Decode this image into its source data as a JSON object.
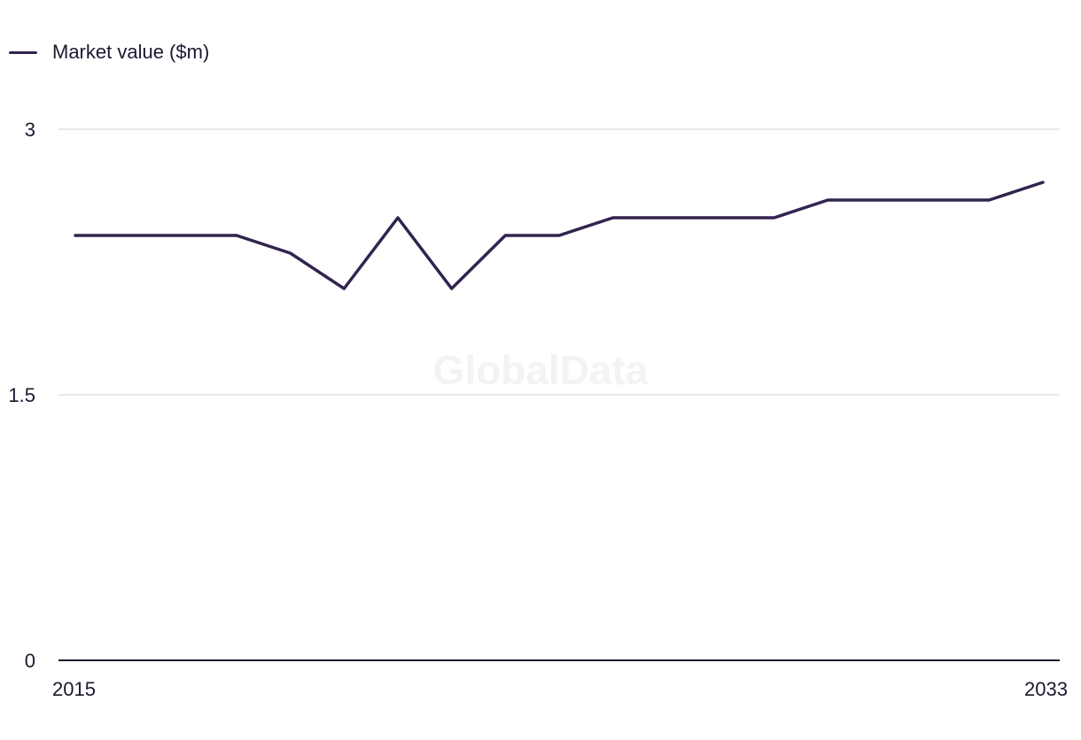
{
  "legend": {
    "label": "Market value ($m)"
  },
  "watermark": "GlobalData",
  "colors": {
    "series": "#32234f",
    "grid": "#d9d9d9",
    "axis": "#1e1830"
  },
  "chart_data": {
    "type": "line",
    "title": "",
    "xlabel": "",
    "ylabel": "",
    "x": [
      2015,
      2016,
      2017,
      2018,
      2019,
      2020,
      2021,
      2022,
      2023,
      2024,
      2025,
      2026,
      2027,
      2028,
      2029,
      2030,
      2031,
      2032,
      2033
    ],
    "x_tick_labels": [
      "2015",
      "2033"
    ],
    "series": [
      {
        "name": "Market value ($m)",
        "values": [
          2.4,
          2.4,
          2.4,
          2.4,
          2.3,
          2.1,
          2.5,
          2.1,
          2.4,
          2.4,
          2.5,
          2.5,
          2.5,
          2.5,
          2.6,
          2.6,
          2.6,
          2.6,
          2.7
        ]
      }
    ],
    "ylim": [
      0,
      3
    ],
    "y_ticks": [
      0,
      1.5,
      3
    ],
    "y_tick_labels": [
      "0",
      "1.5",
      "3"
    ],
    "grid": true,
    "legend_position": "top-left"
  }
}
